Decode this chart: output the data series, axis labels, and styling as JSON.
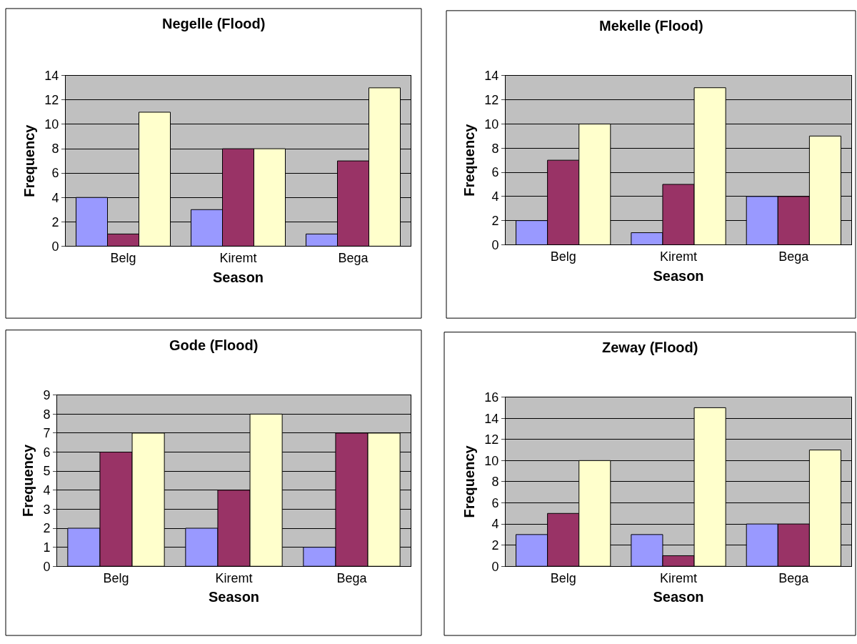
{
  "chart_data": [
    {
      "type": "bar",
      "title": "Negelle (Flood)",
      "xlabel": "Season",
      "ylabel": "Frequency",
      "categories": [
        "Belg",
        "Kiremt",
        "Bega"
      ],
      "ylim": [
        0,
        14
      ],
      "yticks": [
        0,
        2,
        4,
        6,
        8,
        10,
        12,
        14
      ],
      "grid": "y",
      "series": [
        {
          "color": "#9999ff",
          "values": [
            4,
            3,
            1
          ]
        },
        {
          "color": "#993366",
          "values": [
            1,
            8,
            7
          ]
        },
        {
          "color": "#ffffcc",
          "values": [
            11,
            8,
            13
          ]
        }
      ]
    },
    {
      "type": "bar",
      "title": "Mekelle (Flood)",
      "xlabel": "Season",
      "ylabel": "Frequency",
      "categories": [
        "Belg",
        "Kiremt",
        "Bega"
      ],
      "ylim": [
        0,
        14
      ],
      "yticks": [
        0,
        2,
        4,
        6,
        8,
        10,
        12,
        14
      ],
      "grid": "y",
      "series": [
        {
          "color": "#9999ff",
          "values": [
            2,
            1,
            4
          ]
        },
        {
          "color": "#993366",
          "values": [
            7,
            5,
            4
          ]
        },
        {
          "color": "#ffffcc",
          "values": [
            10,
            13,
            9
          ]
        }
      ]
    },
    {
      "type": "bar",
      "title": "Gode (Flood)",
      "xlabel": "Season",
      "ylabel": "Frequency",
      "categories": [
        "Belg",
        "Kiremt",
        "Bega"
      ],
      "ylim": [
        0,
        9
      ],
      "yticks": [
        0,
        1,
        2,
        3,
        4,
        5,
        6,
        7,
        8,
        9
      ],
      "grid": "y",
      "series": [
        {
          "color": "#9999ff",
          "values": [
            2,
            2,
            1
          ]
        },
        {
          "color": "#993366",
          "values": [
            6,
            4,
            7
          ]
        },
        {
          "color": "#ffffcc",
          "values": [
            7,
            8,
            7
          ]
        }
      ]
    },
    {
      "type": "bar",
      "title": "Zeway (Flood)",
      "xlabel": "Season",
      "ylabel": "Frequency",
      "categories": [
        "Belg",
        "Kiremt",
        "Bega"
      ],
      "ylim": [
        0,
        16
      ],
      "yticks": [
        0,
        2,
        4,
        6,
        8,
        10,
        12,
        14,
        16
      ],
      "grid": "y",
      "series": [
        {
          "color": "#9999ff",
          "values": [
            3,
            3,
            4
          ]
        },
        {
          "color": "#993366",
          "values": [
            5,
            1,
            4
          ]
        },
        {
          "color": "#ffffcc",
          "values": [
            10,
            15,
            11
          ]
        }
      ]
    }
  ]
}
